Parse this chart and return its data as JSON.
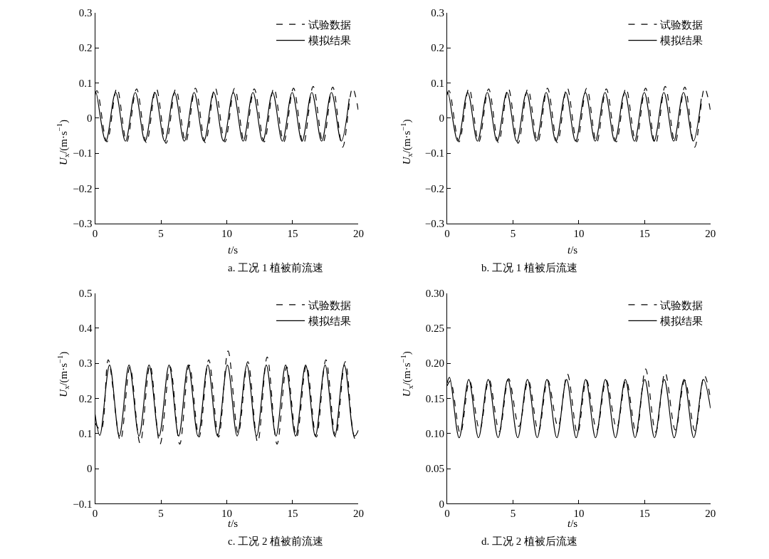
{
  "chart_data": [
    {
      "type": "line",
      "title": "a. 工况 1 植被前流速",
      "xlabel": "t/s",
      "ylabel": "U$_{x}$/(m·s$^{−1}$)",
      "xlim": [
        0,
        20
      ],
      "xticks": [
        0,
        5,
        10,
        15,
        20
      ],
      "ylim": [
        -0.3,
        0.3
      ],
      "yticks": [
        {
          "value": -0.3,
          "label": "−0.3"
        },
        {
          "value": -0.2,
          "label": "−0.2"
        },
        {
          "value": -0.1,
          "label": "−0.1"
        },
        0,
        0.1,
        0.2,
        0.3
      ],
      "legend": "top right",
      "marker": "none",
      "series": [
        {
          "name": "试验数据",
          "color": "#000000",
          "line_style": "dashed",
          "x": [
            0,
            0.15,
            0.9,
            1.66,
            2.4,
            3.15,
            3.9,
            4.64,
            5.39,
            6.13,
            6.88,
            7.62,
            8.37,
            9.11,
            9.86,
            10.6,
            11.35,
            12.09,
            12.84,
            13.58,
            14.33,
            15.07,
            15.82,
            16.56,
            17.31,
            18.05,
            18.8,
            19.55,
            20
          ],
          "values": [
            0.07,
            0.078,
            -0.068,
            0.085,
            -0.068,
            0.083,
            -0.07,
            0.085,
            -0.072,
            0.083,
            -0.068,
            0.085,
            -0.07,
            0.087,
            -0.068,
            0.085,
            -0.07,
            0.083,
            -0.068,
            0.085,
            -0.068,
            0.085,
            -0.075,
            0.09,
            -0.07,
            0.088,
            -0.083,
            0.085,
            0.02
          ]
        },
        {
          "name": "模拟结果",
          "color": "#000000",
          "line_style": "solid",
          "x": [
            0,
            0.07,
            0.815,
            1.56,
            2.305,
            3.05,
            3.795,
            4.54,
            5.285,
            6.03,
            6.775,
            7.52,
            8.265,
            9.01,
            9.755,
            10.5,
            11.245,
            11.99,
            12.735,
            13.48,
            14.225,
            14.97,
            15.715,
            16.46,
            17.205,
            17.95,
            18.695,
            19.3
          ],
          "values": [
            0.065,
            0.073,
            -0.066,
            0.073,
            -0.066,
            0.073,
            -0.066,
            0.073,
            -0.066,
            0.073,
            -0.066,
            0.073,
            -0.066,
            0.073,
            -0.066,
            0.073,
            -0.066,
            0.073,
            -0.066,
            0.073,
            -0.066,
            0.073,
            -0.066,
            0.073,
            -0.066,
            0.073,
            -0.066,
            0.055
          ]
        }
      ]
    },
    {
      "type": "line",
      "title": "b. 工况 1 植被后流速",
      "xlabel": "t/s",
      "ylabel": "U$_{x}$/(m·s$^{−1}$)",
      "xlim": [
        0,
        20
      ],
      "xticks": [
        0,
        5,
        10,
        15,
        20
      ],
      "ylim": [
        -0.3,
        0.3
      ],
      "yticks": [
        {
          "value": -0.3,
          "label": "−0.3"
        },
        {
          "value": -0.2,
          "label": "−0.2"
        },
        {
          "value": -0.1,
          "label": "−0.1"
        },
        0,
        0.1,
        0.2,
        0.3
      ],
      "legend": "top right",
      "marker": "none",
      "series": [
        {
          "name": "试验数据",
          "color": "#000000",
          "line_style": "dashed",
          "x": [
            0,
            0.15,
            0.9,
            1.66,
            2.4,
            3.15,
            3.9,
            4.64,
            5.39,
            6.13,
            6.88,
            7.62,
            8.37,
            9.11,
            9.86,
            10.6,
            11.35,
            12.09,
            12.84,
            13.58,
            14.33,
            15.07,
            15.82,
            16.56,
            17.31,
            18.05,
            18.8,
            19.55,
            20
          ],
          "values": [
            0.07,
            0.078,
            -0.068,
            0.085,
            -0.068,
            0.083,
            -0.07,
            0.085,
            -0.072,
            0.083,
            -0.068,
            0.085,
            -0.07,
            0.087,
            -0.068,
            0.085,
            -0.07,
            0.083,
            -0.068,
            0.085,
            -0.068,
            0.085,
            -0.075,
            0.09,
            -0.07,
            0.088,
            -0.083,
            0.085,
            0.02
          ]
        },
        {
          "name": "模拟结果",
          "color": "#000000",
          "line_style": "solid",
          "x": [
            0,
            0.07,
            0.815,
            1.56,
            2.305,
            3.05,
            3.795,
            4.54,
            5.285,
            6.03,
            6.775,
            7.52,
            8.265,
            9.01,
            9.755,
            10.5,
            11.245,
            11.99,
            12.735,
            13.48,
            14.225,
            14.97,
            15.715,
            16.46,
            17.205,
            17.95,
            18.695,
            19.3
          ],
          "values": [
            0.065,
            0.073,
            -0.066,
            0.073,
            -0.066,
            0.073,
            -0.066,
            0.073,
            -0.066,
            0.073,
            -0.066,
            0.073,
            -0.066,
            0.073,
            -0.066,
            0.073,
            -0.066,
            0.073,
            -0.066,
            0.073,
            -0.066,
            0.073,
            -0.066,
            0.073,
            -0.066,
            0.073,
            -0.066,
            0.055
          ]
        }
      ]
    },
    {
      "type": "line",
      "title": "c. 工况 2 植被前流速",
      "xlabel": "t/s",
      "ylabel": "U$_{x}$/(m·s$^{−1}$)",
      "xlim": [
        0,
        20
      ],
      "xticks": [
        0,
        5,
        10,
        15,
        20
      ],
      "ylim": [
        -0.1,
        0.5
      ],
      "yticks": [
        {
          "value": -0.1,
          "label": "−0.1"
        },
        0,
        0.1,
        0.2,
        0.3,
        0.4,
        0.5
      ],
      "legend": "top right",
      "marker": "none",
      "series": [
        {
          "name": "试验数据",
          "color": "#000000",
          "line_style": "dashed",
          "x": [
            0,
            0.45,
            1.0,
            1.92,
            2.65,
            3.42,
            4.17,
            4.93,
            5.7,
            6.43,
            7.15,
            7.9,
            8.63,
            9.38,
            10.1,
            10.87,
            11.6,
            12.35,
            13.07,
            13.82,
            14.55,
            15.3,
            16.05,
            16.8,
            17.53,
            18.27,
            19.0,
            19.75,
            20
          ],
          "values": [
            0.13,
            0.11,
            0.31,
            0.08,
            0.29,
            0.072,
            0.295,
            0.07,
            0.29,
            0.07,
            0.295,
            0.09,
            0.31,
            0.09,
            0.335,
            0.1,
            0.305,
            0.075,
            0.318,
            0.07,
            0.29,
            0.09,
            0.295,
            0.09,
            0.31,
            0.09,
            0.305,
            0.085,
            0.09
          ]
        },
        {
          "name": "模拟结果",
          "color": "#000000",
          "line_style": "solid",
          "x": [
            0,
            0.36,
            1.1,
            1.84,
            2.58,
            3.34,
            4.1,
            4.86,
            5.62,
            6.35,
            7.07,
            7.82,
            8.56,
            9.3,
            10.05,
            10.79,
            11.53,
            12.27,
            13.0,
            13.74,
            14.47,
            15.23,
            15.99,
            16.73,
            17.47,
            18.2,
            18.93,
            19.7,
            20
          ],
          "values": [
            0.155,
            0.095,
            0.295,
            0.093,
            0.295,
            0.093,
            0.295,
            0.093,
            0.295,
            0.093,
            0.295,
            0.093,
            0.295,
            0.093,
            0.295,
            0.093,
            0.295,
            0.093,
            0.295,
            0.093,
            0.295,
            0.093,
            0.295,
            0.093,
            0.295,
            0.093,
            0.295,
            0.093,
            0.11
          ]
        }
      ]
    },
    {
      "type": "line",
      "title": "d. 工况 2 植被后流速",
      "xlabel": "t/s",
      "ylabel": "U$_{x}$/(m·s$^{−1}$)",
      "xlim": [
        0,
        20
      ],
      "xticks": [
        0,
        5,
        10,
        15,
        20
      ],
      "ylim": [
        0,
        0.3
      ],
      "yticks": [
        0,
        {
          "value": 0.05,
          "label": "0.05"
        },
        {
          "value": 0.1,
          "label": "0.10"
        },
        {
          "value": 0.15,
          "label": "0.15"
        },
        {
          "value": 0.2,
          "label": "0.20"
        },
        {
          "value": 0.25,
          "label": "0.25"
        },
        {
          "value": 0.3,
          "label": "0.30"
        }
      ],
      "legend": "top right",
      "marker": "none",
      "series": [
        {
          "name": "试验数据",
          "color": "#000000",
          "line_style": "dashed",
          "x": [
            0,
            0.25,
            1.0,
            1.7,
            2.47,
            3.18,
            3.96,
            4.67,
            5.45,
            6.16,
            6.93,
            7.64,
            8.42,
            9.13,
            9.9,
            10.58,
            11.36,
            12.08,
            12.87,
            13.59,
            14.36,
            15.07,
            15.84,
            16.55,
            17.33,
            18.05,
            18.82,
            19.53,
            20
          ],
          "values": [
            0.168,
            0.175,
            0.1,
            0.175,
            0.105,
            0.177,
            0.103,
            0.178,
            0.11,
            0.176,
            0.103,
            0.176,
            0.11,
            0.185,
            0.1,
            0.176,
            0.105,
            0.176,
            0.108,
            0.176,
            0.1,
            0.192,
            0.102,
            0.187,
            0.105,
            0.176,
            0.104,
            0.183,
            0.15
          ]
        },
        {
          "name": "模拟结果",
          "color": "#000000",
          "line_style": "solid",
          "x": [
            0,
            0.18,
            0.91,
            1.64,
            2.38,
            3.12,
            3.87,
            4.61,
            5.36,
            6.1,
            6.84,
            7.58,
            8.33,
            9.07,
            9.8,
            10.52,
            11.27,
            12.02,
            12.78,
            13.53,
            14.27,
            15.01,
            15.75,
            16.49,
            17.24,
            17.99,
            18.73,
            19.47,
            20
          ],
          "values": [
            0.172,
            0.18,
            0.094,
            0.177,
            0.094,
            0.177,
            0.094,
            0.177,
            0.094,
            0.177,
            0.094,
            0.177,
            0.094,
            0.177,
            0.094,
            0.177,
            0.094,
            0.177,
            0.094,
            0.177,
            0.094,
            0.177,
            0.094,
            0.177,
            0.094,
            0.177,
            0.094,
            0.177,
            0.136
          ]
        }
      ]
    }
  ]
}
